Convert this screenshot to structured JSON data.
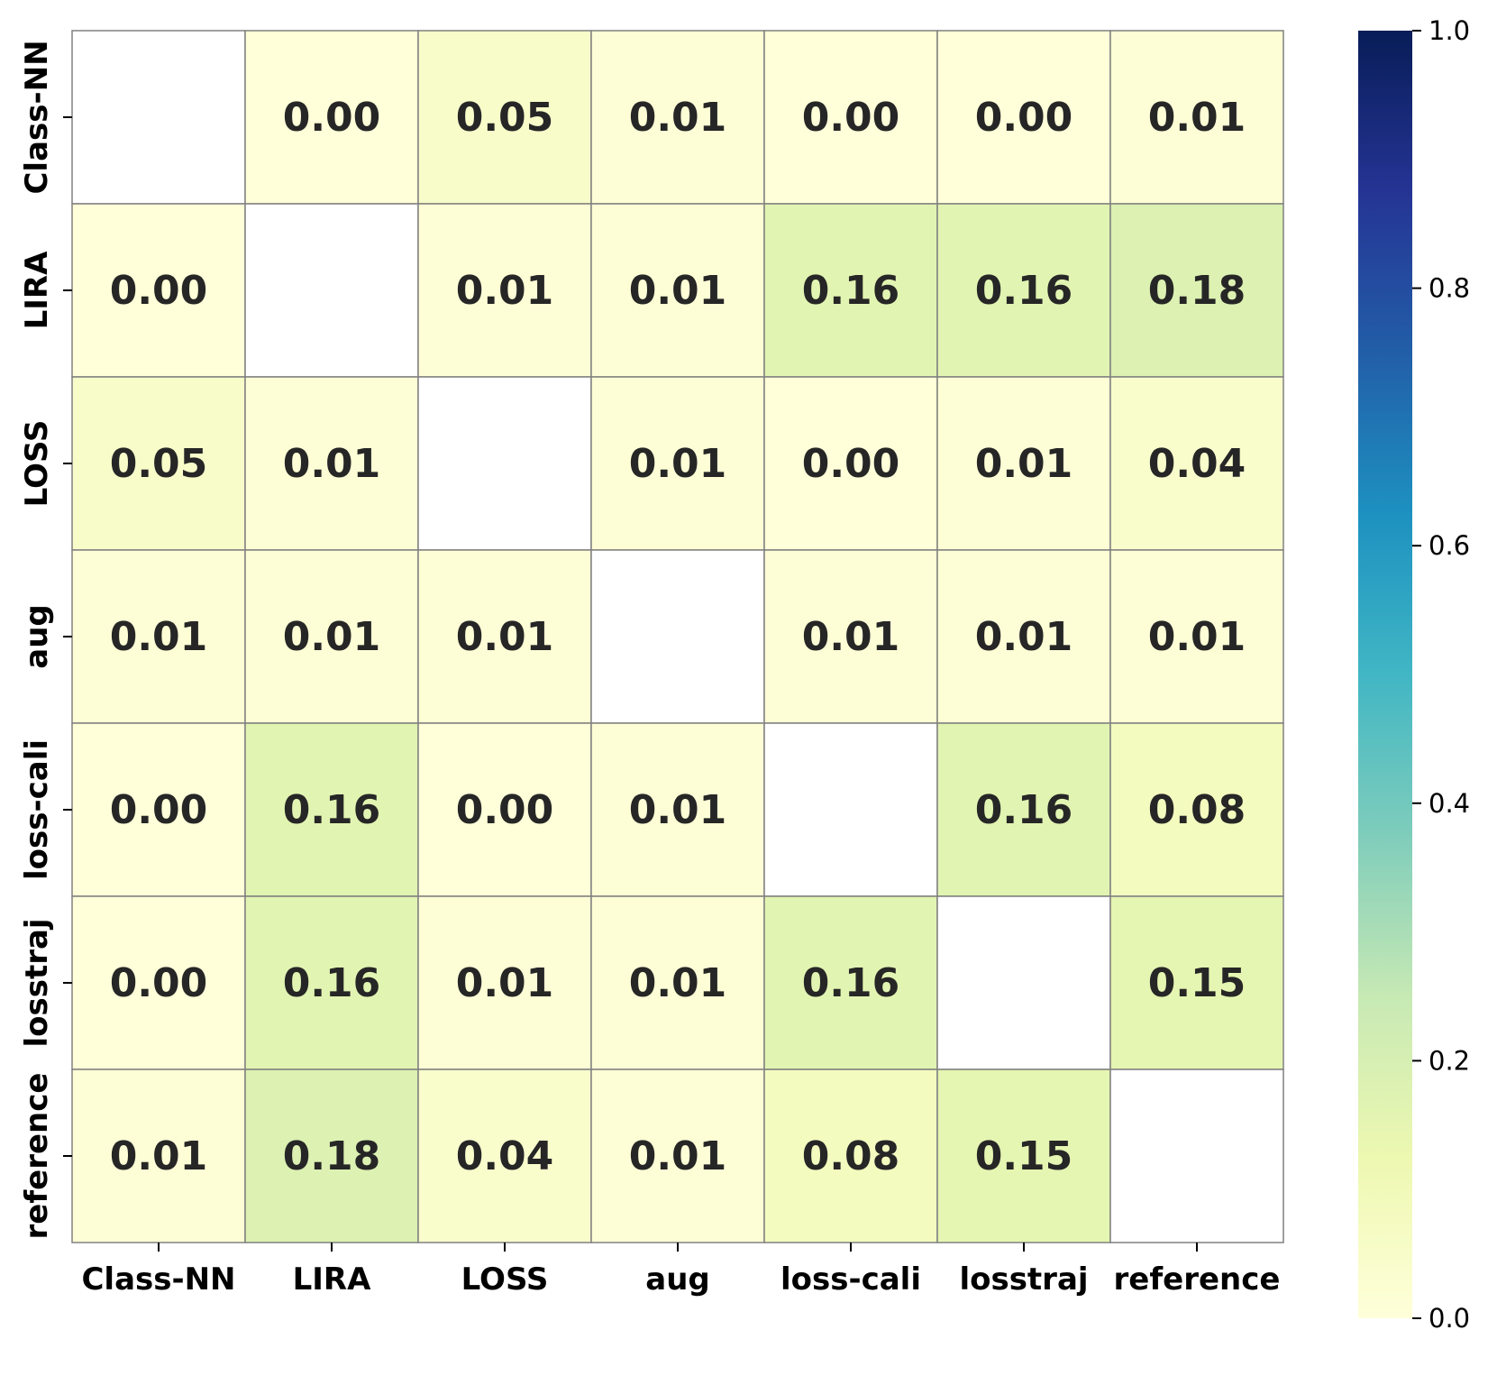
{
  "chart_data": {
    "type": "heatmap",
    "labels": [
      "Class-NN",
      "LIRA",
      "LOSS",
      "aug",
      "loss-cali",
      "losstraj",
      "reference"
    ],
    "values": [
      [
        null,
        0.0,
        0.05,
        0.01,
        0.0,
        0.0,
        0.01
      ],
      [
        0.0,
        null,
        0.01,
        0.01,
        0.16,
        0.16,
        0.18
      ],
      [
        0.05,
        0.01,
        null,
        0.01,
        0.0,
        0.01,
        0.04
      ],
      [
        0.01,
        0.01,
        0.01,
        null,
        0.01,
        0.01,
        0.01
      ],
      [
        0.0,
        0.16,
        0.0,
        0.01,
        null,
        0.16,
        0.08
      ],
      [
        0.0,
        0.16,
        0.01,
        0.01,
        0.16,
        null,
        0.15
      ],
      [
        0.01,
        0.18,
        0.04,
        0.01,
        0.08,
        0.15,
        null
      ]
    ],
    "value_labels": [
      [
        "",
        "0.00",
        "0.05",
        "0.01",
        "0.00",
        "0.00",
        "0.01"
      ],
      [
        "0.00",
        "",
        "0.01",
        "0.01",
        "0.16",
        "0.16",
        "0.18"
      ],
      [
        "0.05",
        "0.01",
        "",
        "0.01",
        "0.00",
        "0.01",
        "0.04"
      ],
      [
        "0.01",
        "0.01",
        "0.01",
        "",
        "0.01",
        "0.01",
        "0.01"
      ],
      [
        "0.00",
        "0.16",
        "0.00",
        "0.01",
        "",
        "0.16",
        "0.08"
      ],
      [
        "0.00",
        "0.16",
        "0.01",
        "0.01",
        "0.16",
        "",
        "0.15"
      ],
      [
        "0.01",
        "0.18",
        "0.04",
        "0.01",
        "0.08",
        "0.15",
        ""
      ]
    ],
    "colorbar": {
      "min": 0.0,
      "max": 1.0,
      "ticks": [
        "0.0",
        "0.2",
        "0.4",
        "0.6",
        "0.8",
        "1.0"
      ],
      "colormap": "YlGnBu"
    },
    "colors": {
      "diagonal": "#ffffff",
      "gridline": "#808080",
      "text": "#262626"
    }
  }
}
